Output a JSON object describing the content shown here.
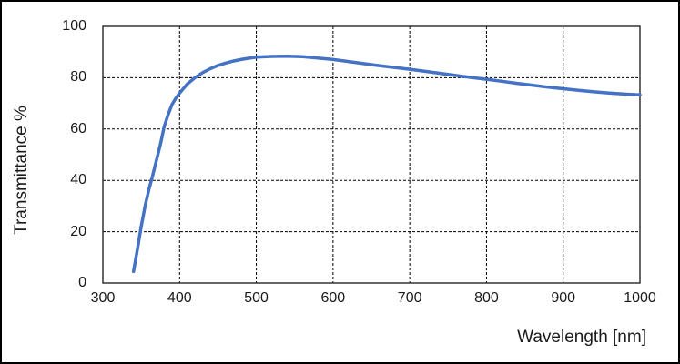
{
  "chart_data": {
    "type": "line",
    "title": "",
    "xlabel": "Wavelength [nm]",
    "ylabel": "Transmittance %",
    "xlim": [
      300,
      1000
    ],
    "ylim": [
      0,
      100
    ],
    "xticks": [
      300,
      400,
      500,
      600,
      700,
      800,
      900,
      1000
    ],
    "yticks": [
      0,
      20,
      40,
      60,
      80,
      100
    ],
    "grid": "dashed-black-both-axes",
    "legend": "none",
    "plot_border_color": "#262626",
    "gridline_color": "#000000",
    "series": [
      {
        "name": "Transmittance",
        "color": "#4472C4",
        "line_width": 3.5,
        "points": [
          [
            340,
            4.5
          ],
          [
            345,
            13
          ],
          [
            350,
            22
          ],
          [
            355,
            30
          ],
          [
            360,
            36.5
          ],
          [
            365,
            42
          ],
          [
            370,
            48
          ],
          [
            375,
            54
          ],
          [
            380,
            61
          ],
          [
            385,
            65.5
          ],
          [
            390,
            69.5
          ],
          [
            395,
            72
          ],
          [
            400,
            74
          ],
          [
            410,
            77.5
          ],
          [
            420,
            80
          ],
          [
            430,
            82
          ],
          [
            440,
            83.5
          ],
          [
            450,
            84.8
          ],
          [
            460,
            85.7
          ],
          [
            470,
            86.5
          ],
          [
            480,
            87.1
          ],
          [
            490,
            87.6
          ],
          [
            500,
            88.0
          ],
          [
            520,
            88.3
          ],
          [
            540,
            88.4
          ],
          [
            560,
            88.2
          ],
          [
            580,
            87.7
          ],
          [
            600,
            87.1
          ],
          [
            620,
            86.3
          ],
          [
            640,
            85.5
          ],
          [
            660,
            84.7
          ],
          [
            680,
            84.0
          ],
          [
            700,
            83.3
          ],
          [
            720,
            82.5
          ],
          [
            740,
            81.7
          ],
          [
            760,
            80.9
          ],
          [
            780,
            80.1
          ],
          [
            800,
            79.4
          ],
          [
            820,
            78.6
          ],
          [
            840,
            77.8
          ],
          [
            860,
            77.1
          ],
          [
            880,
            76.3
          ],
          [
            900,
            75.7
          ],
          [
            920,
            75.1
          ],
          [
            940,
            74.5
          ],
          [
            960,
            74.0
          ],
          [
            980,
            73.6
          ],
          [
            1000,
            73.3
          ]
        ]
      }
    ]
  }
}
